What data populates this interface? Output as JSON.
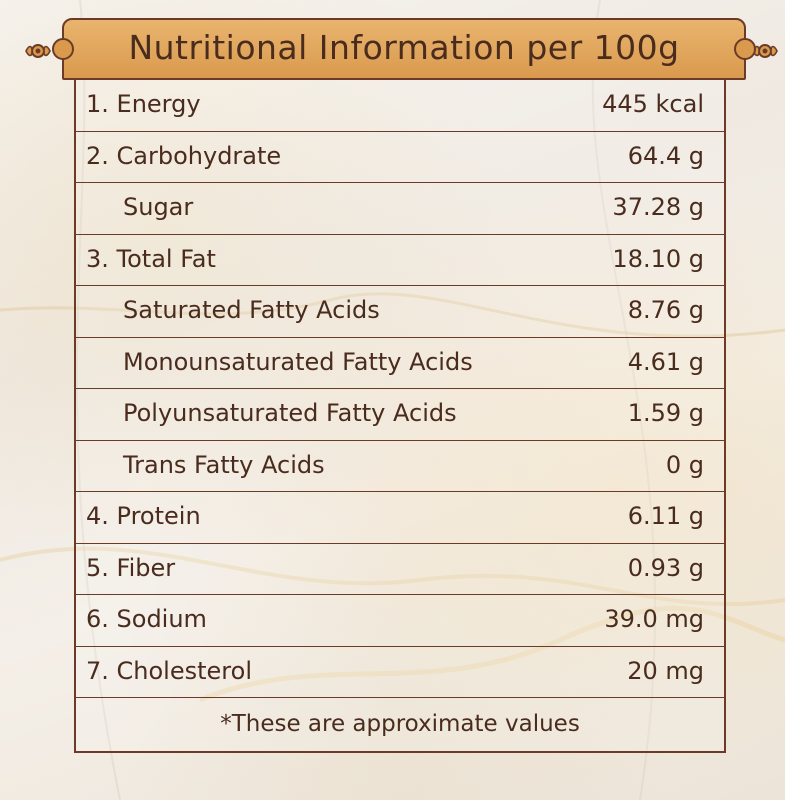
{
  "title": "Nutritional Information per 100g",
  "rows": [
    {
      "label": "1. Energy",
      "value": "445 kcal",
      "sub": false
    },
    {
      "label": "2. Carbohydrate",
      "value": "64.4 g",
      "sub": false
    },
    {
      "label": "Sugar",
      "value": "37.28 g",
      "sub": true
    },
    {
      "label": "3. Total Fat",
      "value": "18.10 g",
      "sub": false
    },
    {
      "label": "Saturated Fatty Acids",
      "value": "8.76 g",
      "sub": true
    },
    {
      "label": "Monounsaturated Fatty Acids",
      "value": "4.61 g",
      "sub": true
    },
    {
      "label": "Polyunsaturated Fatty Acids",
      "value": "1.59 g",
      "sub": true
    },
    {
      "label": "Trans Fatty Acids",
      "value": "0 g",
      "sub": true
    },
    {
      "label": "4. Protein",
      "value": "6.11 g",
      "sub": false
    },
    {
      "label": "5. Fiber",
      "value": "0.93 g",
      "sub": false
    },
    {
      "label": "6. Sodium",
      "value": "39.0 mg",
      "sub": false
    },
    {
      "label": "7. Cholesterol",
      "value": "20 mg",
      "sub": false
    }
  ],
  "note": "*These are approximate values",
  "colors": {
    "header": "#d99a4e",
    "border": "#6b3b27",
    "text": "#4a2c1e"
  },
  "icons": {
    "left_ornament": "flower-ornament-icon",
    "right_ornament": "flower-ornament-icon"
  }
}
